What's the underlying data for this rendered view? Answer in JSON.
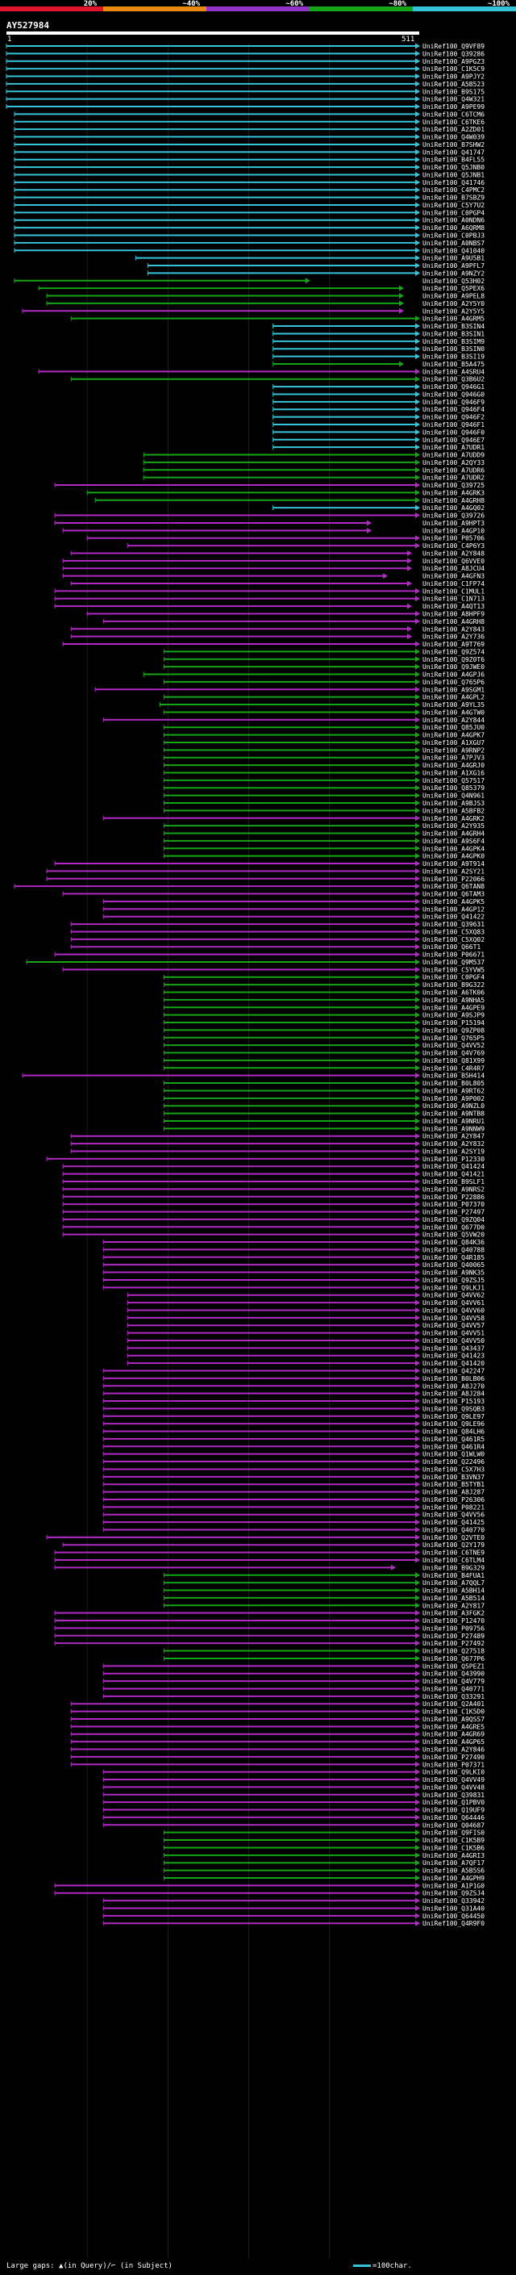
{
  "header": {
    "scale_labels": [
      "20%",
      "~40%",
      "~60%",
      "~80%",
      "~100%"
    ],
    "scale_colors": [
      "#e0142a",
      "#e88a12",
      "#9334c8",
      "#16a516",
      "#35c3d8"
    ],
    "title": "AY527984",
    "range_start": "1",
    "range_end": "511"
  },
  "query_length": 511,
  "colors": {
    "cyan": "#35c3d8",
    "green": "#16a516",
    "magenta": "#b12ac4",
    "background": "#000000",
    "label": "#ffffff"
  },
  "hits": [
    [
      "UniRef100_Q9VF89",
      0,
      511,
      "c"
    ],
    [
      "UniRef100_Q39286",
      0,
      511,
      "c"
    ],
    [
      "UniRef100_A9PGZ3",
      0,
      511,
      "c"
    ],
    [
      "UniRef100_C1K5C9",
      0,
      511,
      "c"
    ],
    [
      "UniRef100_A9PJY2",
      0,
      511,
      "c"
    ],
    [
      "UniRef100_A5B523",
      0,
      511,
      "c"
    ],
    [
      "UniRef100_B9S175",
      0,
      511,
      "c"
    ],
    [
      "UniRef100_Q4W321",
      0,
      511,
      "c"
    ],
    [
      "UniRef100_A9PE99",
      0,
      511,
      "c"
    ],
    [
      "UniRef100_C6TCM6",
      10,
      511,
      "c"
    ],
    [
      "UniRef100_C6TKE6",
      10,
      511,
      "c"
    ],
    [
      "UniRef100_A2ZD01",
      10,
      511,
      "c"
    ],
    [
      "UniRef100_Q4W039",
      10,
      511,
      "c"
    ],
    [
      "UniRef100_B7SHW2",
      10,
      511,
      "c"
    ],
    [
      "UniRef100_Q41747",
      10,
      511,
      "c"
    ],
    [
      "UniRef100_B4FL55",
      10,
      511,
      "c"
    ],
    [
      "UniRef100_Q5JNB0",
      10,
      511,
      "c"
    ],
    [
      "UniRef100_Q5JNB1",
      10,
      511,
      "c"
    ],
    [
      "UniRef100_Q41746",
      10,
      511,
      "c"
    ],
    [
      "UniRef100_C4PMC2",
      10,
      511,
      "c"
    ],
    [
      "UniRef100_B7SBZ9",
      10,
      511,
      "c"
    ],
    [
      "UniRef100_C5Y7U2",
      10,
      511,
      "c"
    ],
    [
      "UniRef100_C0PGP4",
      10,
      511,
      "c"
    ],
    [
      "UniRef100_A0NDN6",
      10,
      511,
      "c"
    ],
    [
      "UniRef100_A6QRM8",
      10,
      511,
      "c"
    ],
    [
      "UniRef100_C0PBJ3",
      10,
      511,
      "c"
    ],
    [
      "UniRef100_A0NBS7",
      10,
      511,
      "c"
    ],
    [
      "UniRef100_Q41040",
      10,
      511,
      "c"
    ],
    [
      "UniRef100_A9U5B1",
      160,
      511,
      "c"
    ],
    [
      "UniRef100_A9PFL7",
      175,
      511,
      "c"
    ],
    [
      "UniRef100_A9NZY2",
      175,
      511,
      "c"
    ],
    [
      "UniRef100_Q53H02",
      10,
      375,
      "g"
    ],
    [
      "UniRef100_Q5PEX6",
      40,
      491,
      "g"
    ],
    [
      "UniRef100_A9PEL8",
      50,
      491,
      "g"
    ],
    [
      "UniRef100_A2Y5Y0",
      50,
      491,
      "g"
    ],
    [
      "UniRef100_A2Y5Y5",
      20,
      491,
      "m"
    ],
    [
      "UniRef100_A4GRM5",
      80,
      511,
      "g"
    ],
    [
      "UniRef100_B3SIN4",
      330,
      511,
      "c"
    ],
    [
      "UniRef100_B3SIN1",
      330,
      511,
      "c"
    ],
    [
      "UniRef100_B3SIM9",
      330,
      511,
      "c"
    ],
    [
      "UniRef100_B3SIN0",
      330,
      511,
      "c"
    ],
    [
      "UniRef100_B3SI19",
      330,
      511,
      "c"
    ],
    [
      "UniRef100_B5A475",
      330,
      491,
      "g"
    ],
    [
      "UniRef100_A4SRU4",
      40,
      511,
      "m"
    ],
    [
      "UniRef100_Q3B6U2",
      80,
      511,
      "g"
    ],
    [
      "UniRef100_Q946G1",
      330,
      511,
      "c"
    ],
    [
      "UniRef100_Q946G0",
      330,
      511,
      "c"
    ],
    [
      "UniRef100_Q946F9",
      330,
      511,
      "c"
    ],
    [
      "UniRef100_Q946F4",
      330,
      511,
      "c"
    ],
    [
      "UniRef100_Q946F2",
      330,
      511,
      "c"
    ],
    [
      "UniRef100_Q946F1",
      330,
      511,
      "c"
    ],
    [
      "UniRef100_Q946F0",
      330,
      511,
      "c"
    ],
    [
      "UniRef100_Q946E7",
      330,
      511,
      "c"
    ],
    [
      "UniRef100_A7UDR1",
      330,
      511,
      "c"
    ],
    [
      "UniRef100_A7UDD9",
      170,
      511,
      "g"
    ],
    [
      "UniRef100_A2QY33",
      170,
      511,
      "g"
    ],
    [
      "UniRef100_A7UDR6",
      170,
      511,
      "g"
    ],
    [
      "UniRef100_A7UDR2",
      170,
      511,
      "g"
    ],
    [
      "UniRef100_Q39725",
      60,
      511,
      "m"
    ],
    [
      "UniRef100_A4GRK3",
      100,
      511,
      "g"
    ],
    [
      "UniRef100_A4GRH8",
      110,
      511,
      "g"
    ],
    [
      "UniRef100_A4GQ02",
      330,
      511,
      "c"
    ],
    [
      "UniRef100_Q39726",
      60,
      511,
      "m"
    ],
    [
      "UniRef100_A9HPT3",
      60,
      451,
      "m"
    ],
    [
      "UniRef100_A4GP10",
      70,
      451,
      "m"
    ],
    [
      "UniRef100_P05706",
      100,
      511,
      "m"
    ],
    [
      "UniRef100_C4P6Y3",
      150,
      511,
      "m"
    ],
    [
      "UniRef100_A2Y848",
      80,
      501,
      "m"
    ],
    [
      "UniRef100_Q6VVE0",
      70,
      501,
      "m"
    ],
    [
      "UniRef100_A8JCU4",
      70,
      501,
      "m"
    ],
    [
      "UniRef100_A4GFN3",
      70,
      471,
      "m"
    ],
    [
      "UniRef100_C1FP74",
      80,
      501,
      "m"
    ],
    [
      "UniRef100_C1MUL1",
      60,
      511,
      "m"
    ],
    [
      "UniRef100_C1N713",
      60,
      511,
      "m"
    ],
    [
      "UniRef100_A4QT13",
      60,
      501,
      "m"
    ],
    [
      "UniRef100_A8HPF9",
      100,
      511,
      "m"
    ],
    [
      "UniRef100_A4GRH8",
      120,
      511,
      "m"
    ],
    [
      "UniRef100_A2Y843",
      80,
      501,
      "m"
    ],
    [
      "UniRef100_A2Y736",
      80,
      501,
      "m"
    ],
    [
      "UniRef100_A9T769",
      70,
      511,
      "m"
    ],
    [
      "UniRef100_Q9Z574",
      195,
      511,
      "g"
    ],
    [
      "UniRef100_Q9Z0T6",
      195,
      511,
      "g"
    ],
    [
      "UniRef100_Q9JWE0",
      195,
      511,
      "g"
    ],
    [
      "UniRef100_A4GPJ6",
      170,
      511,
      "g"
    ],
    [
      "UniRef100_Q765P6",
      195,
      511,
      "g"
    ],
    [
      "UniRef100_A9SGM1",
      110,
      511,
      "m"
    ],
    [
      "UniRef100_A4GPL2",
      195,
      511,
      "g"
    ],
    [
      "UniRef100_A9YL35",
      190,
      511,
      "g"
    ],
    [
      "UniRef100_A4GTW0",
      195,
      511,
      "g"
    ],
    [
      "UniRef100_A2Y844",
      120,
      511,
      "m"
    ],
    [
      "UniRef100_Q85JU0",
      195,
      511,
      "g"
    ],
    [
      "UniRef100_A4GPK7",
      195,
      511,
      "g"
    ],
    [
      "UniRef100_A1XGU7",
      195,
      511,
      "g"
    ],
    [
      "UniRef100_A9RNP2",
      195,
      511,
      "g"
    ],
    [
      "UniRef100_A7PJV3",
      195,
      511,
      "g"
    ],
    [
      "UniRef100_A4GRJ0",
      195,
      511,
      "g"
    ],
    [
      "UniRef100_A1XG16",
      195,
      511,
      "g"
    ],
    [
      "UniRef100_Q57517",
      195,
      511,
      "g"
    ],
    [
      "UniRef100_Q85379",
      195,
      511,
      "g"
    ],
    [
      "UniRef100_Q4N961",
      195,
      511,
      "g"
    ],
    [
      "UniRef100_A9BJS3",
      195,
      511,
      "g"
    ],
    [
      "UniRef100_A5BFB2",
      195,
      511,
      "g"
    ],
    [
      "UniRef100_A4GRK2",
      120,
      511,
      "m"
    ],
    [
      "UniRef100_A2Y935",
      195,
      511,
      "g"
    ],
    [
      "UniRef100_A4GRH4",
      195,
      511,
      "g"
    ],
    [
      "UniRef100_A9S6F4",
      195,
      511,
      "g"
    ],
    [
      "UniRef100_A4GPK4",
      195,
      511,
      "g"
    ],
    [
      "UniRef100_A4GPK0",
      195,
      511,
      "g"
    ],
    [
      "UniRef100_A9T914",
      60,
      511,
      "m"
    ],
    [
      "UniRef100_A2SY21",
      50,
      511,
      "m"
    ],
    [
      "UniRef100_P22066",
      50,
      511,
      "m"
    ],
    [
      "UniRef100_Q6TAN8",
      10,
      511,
      "m"
    ],
    [
      "UniRef100_Q6TAM3",
      70,
      511,
      "m"
    ],
    [
      "UniRef100_A4GPK5",
      120,
      511,
      "m"
    ],
    [
      "UniRef100_A4GP12",
      120,
      511,
      "m"
    ],
    [
      "UniRef100_Q41422",
      120,
      511,
      "m"
    ],
    [
      "UniRef100_Q39631",
      80,
      511,
      "m"
    ],
    [
      "UniRef100_C5XQ83",
      80,
      511,
      "m"
    ],
    [
      "UniRef100_C5XQ02",
      80,
      511,
      "m"
    ],
    [
      "UniRef100_Q66T1",
      80,
      511,
      "m"
    ],
    [
      "UniRef100_P06671",
      60,
      511,
      "m"
    ],
    [
      "UniRef100_Q9M537",
      25,
      511,
      "g"
    ],
    [
      "UniRef100_C5YVW5",
      70,
      511,
      "m"
    ],
    [
      "UniRef100_C0PGF4",
      195,
      511,
      "g"
    ],
    [
      "UniRef100_B9G322",
      195,
      511,
      "g"
    ],
    [
      "UniRef100_A6TK06",
      195,
      511,
      "g"
    ],
    [
      "UniRef100_A9NHA5",
      195,
      511,
      "g"
    ],
    [
      "UniRef100_A4GPE9",
      195,
      511,
      "g"
    ],
    [
      "UniRef100_A9SJP9",
      195,
      511,
      "g"
    ],
    [
      "UniRef100_P15194",
      195,
      511,
      "g"
    ],
    [
      "UniRef100_Q9ZP08",
      195,
      511,
      "g"
    ],
    [
      "UniRef100_Q765P5",
      195,
      511,
      "g"
    ],
    [
      "UniRef100_Q4VV52",
      195,
      511,
      "g"
    ],
    [
      "UniRef100_Q4V769",
      195,
      511,
      "g"
    ],
    [
      "UniRef100_Q81X99",
      195,
      511,
      "g"
    ],
    [
      "UniRef100_C4R4R7",
      195,
      511,
      "g"
    ],
    [
      "UniRef100_B5H414",
      20,
      511,
      "m"
    ],
    [
      "UniRef100_B0L805",
      195,
      511,
      "g"
    ],
    [
      "UniRef100_A9RT62",
      195,
      511,
      "g"
    ],
    [
      "UniRef100_A9P002",
      195,
      511,
      "g"
    ],
    [
      "UniRef100_A9NZL0",
      195,
      511,
      "g"
    ],
    [
      "UniRef100_A9NTB8",
      195,
      511,
      "g"
    ],
    [
      "UniRef100_A9NRU1",
      195,
      511,
      "g"
    ],
    [
      "UniRef100_A9NNW9",
      195,
      511,
      "g"
    ],
    [
      "UniRef100_A2Y847",
      80,
      511,
      "m"
    ],
    [
      "UniRef100_A2Y832",
      80,
      511,
      "m"
    ],
    [
      "UniRef100_A2SY19",
      80,
      511,
      "m"
    ],
    [
      "UniRef100_P12330",
      50,
      511,
      "m"
    ],
    [
      "UniRef100_Q41424",
      70,
      511,
      "m"
    ],
    [
      "UniRef100_Q41421",
      70,
      511,
      "m"
    ],
    [
      "UniRef100_B9SLF1",
      70,
      511,
      "m"
    ],
    [
      "UniRef100_A9NRS2",
      70,
      511,
      "m"
    ],
    [
      "UniRef100_P22886",
      70,
      511,
      "m"
    ],
    [
      "UniRef100_P07370",
      70,
      511,
      "m"
    ],
    [
      "UniRef100_P27497",
      70,
      511,
      "m"
    ],
    [
      "UniRef100_Q9ZQ04",
      70,
      511,
      "m"
    ],
    [
      "UniRef100_Q677D0",
      70,
      511,
      "m"
    ],
    [
      "UniRef100_Q5VW20",
      70,
      511,
      "m"
    ],
    [
      "UniRef100_Q84K36",
      120,
      511,
      "m"
    ],
    [
      "UniRef100_Q40788",
      120,
      511,
      "m"
    ],
    [
      "UniRef100_Q4R185",
      120,
      511,
      "m"
    ],
    [
      "UniRef100_Q40065",
      120,
      511,
      "m"
    ],
    [
      "UniRef100_A9NK35",
      120,
      511,
      "m"
    ],
    [
      "UniRef100_Q9ZSJ5",
      120,
      511,
      "m"
    ],
    [
      "UniRef100_Q9LKJ1",
      120,
      511,
      "m"
    ],
    [
      "UniRef100_Q4VV62",
      150,
      511,
      "m"
    ],
    [
      "UniRef100_Q4VV61",
      150,
      511,
      "m"
    ],
    [
      "UniRef100_Q4VV60",
      150,
      511,
      "m"
    ],
    [
      "UniRef100_Q4VV58",
      150,
      511,
      "m"
    ],
    [
      "UniRef100_Q4VV57",
      150,
      511,
      "m"
    ],
    [
      "UniRef100_Q4VV51",
      150,
      511,
      "m"
    ],
    [
      "UniRef100_Q4VV50",
      150,
      511,
      "m"
    ],
    [
      "UniRef100_Q43437",
      150,
      511,
      "m"
    ],
    [
      "UniRef100_Q41423",
      150,
      511,
      "m"
    ],
    [
      "UniRef100_Q41420",
      150,
      511,
      "m"
    ],
    [
      "UniRef100_Q42247",
      120,
      511,
      "m"
    ],
    [
      "UniRef100_B0LB06",
      120,
      511,
      "m"
    ],
    [
      "UniRef100_A8J270",
      120,
      511,
      "m"
    ],
    [
      "UniRef100_A8J284",
      120,
      511,
      "m"
    ],
    [
      "UniRef100_P15193",
      120,
      511,
      "m"
    ],
    [
      "UniRef100_Q9SQB3",
      120,
      511,
      "m"
    ],
    [
      "UniRef100_Q9LE97",
      120,
      511,
      "m"
    ],
    [
      "UniRef100_Q9LE96",
      120,
      511,
      "m"
    ],
    [
      "UniRef100_Q84LH6",
      120,
      511,
      "m"
    ],
    [
      "UniRef100_Q461R5",
      120,
      511,
      "m"
    ],
    [
      "UniRef100_Q461R4",
      120,
      511,
      "m"
    ],
    [
      "UniRef100_Q1WLW0",
      120,
      511,
      "m"
    ],
    [
      "UniRef100_Q22496",
      120,
      511,
      "m"
    ],
    [
      "UniRef100_C5X7H3",
      120,
      511,
      "m"
    ],
    [
      "UniRef100_B3VN37",
      120,
      511,
      "m"
    ],
    [
      "UniRef100_B5TYB1",
      120,
      511,
      "m"
    ],
    [
      "UniRef100_A8J287",
      120,
      511,
      "m"
    ],
    [
      "UniRef100_P26306",
      120,
      511,
      "m"
    ],
    [
      "UniRef100_P08221",
      120,
      511,
      "m"
    ],
    [
      "UniRef100_Q4VV56",
      120,
      511,
      "m"
    ],
    [
      "UniRef100_Q41425",
      120,
      511,
      "m"
    ],
    [
      "UniRef100_Q40770",
      120,
      511,
      "m"
    ],
    [
      "UniRef100_Q2VTE0",
      50,
      511,
      "m"
    ],
    [
      "UniRef100_Q2Y179",
      70,
      511,
      "m"
    ],
    [
      "UniRef100_C6TNE9",
      60,
      511,
      "m"
    ],
    [
      "UniRef100_C6TLM4",
      60,
      511,
      "m"
    ],
    [
      "UniRef100_B9G329",
      60,
      481,
      "m"
    ],
    [
      "UniRef100_B4FUA1",
      195,
      511,
      "g"
    ],
    [
      "UniRef100_A7QQL7",
      195,
      511,
      "g"
    ],
    [
      "UniRef100_A5BH14",
      195,
      511,
      "g"
    ],
    [
      "UniRef100_A5B514",
      195,
      511,
      "g"
    ],
    [
      "UniRef100_A2Y817",
      195,
      511,
      "g"
    ],
    [
      "UniRef100_A3FGK2",
      60,
      511,
      "m"
    ],
    [
      "UniRef100_P12470",
      60,
      511,
      "m"
    ],
    [
      "UniRef100_P09756",
      60,
      511,
      "m"
    ],
    [
      "UniRef100_P27489",
      60,
      511,
      "m"
    ],
    [
      "UniRef100_P27492",
      60,
      511,
      "m"
    ],
    [
      "UniRef100_Q27518",
      195,
      511,
      "g"
    ],
    [
      "UniRef100_Q677P6",
      195,
      511,
      "g"
    ],
    [
      "UniRef100_Q5PEZ1",
      120,
      511,
      "m"
    ],
    [
      "UniRef100_Q43990",
      120,
      511,
      "m"
    ],
    [
      "UniRef100_Q4V779",
      120,
      511,
      "m"
    ],
    [
      "UniRef100_Q40771",
      120,
      511,
      "m"
    ],
    [
      "UniRef100_Q33291",
      120,
      511,
      "m"
    ],
    [
      "UniRef100_Q2A401",
      80,
      511,
      "m"
    ],
    [
      "UniRef100_C1K5D0",
      80,
      511,
      "m"
    ],
    [
      "UniRef100_A9QSS7",
      80,
      511,
      "m"
    ],
    [
      "UniRef100_A4GRE5",
      80,
      511,
      "m"
    ],
    [
      "UniRef100_A4GR69",
      80,
      511,
      "m"
    ],
    [
      "UniRef100_A4GP65",
      80,
      511,
      "m"
    ],
    [
      "UniRef100_A2Y846",
      80,
      511,
      "m"
    ],
    [
      "UniRef100_P27490",
      80,
      511,
      "m"
    ],
    [
      "UniRef100_P07371",
      80,
      511,
      "m"
    ],
    [
      "UniRef100_Q9LKI0",
      120,
      511,
      "m"
    ],
    [
      "UniRef100_Q4VV49",
      120,
      511,
      "m"
    ],
    [
      "UniRef100_Q4VV48",
      120,
      511,
      "m"
    ],
    [
      "UniRef100_Q39831",
      120,
      511,
      "m"
    ],
    [
      "UniRef100_Q1PBV0",
      120,
      511,
      "m"
    ],
    [
      "UniRef100_Q19UF9",
      120,
      511,
      "m"
    ],
    [
      "UniRef100_Q64446",
      120,
      511,
      "m"
    ],
    [
      "UniRef100_Q04687",
      120,
      511,
      "m"
    ],
    [
      "UniRef100_Q9FIS0",
      195,
      511,
      "g"
    ],
    [
      "UniRef100_C1K5B9",
      195,
      511,
      "g"
    ],
    [
      "UniRef100_C1K5B6",
      195,
      511,
      "g"
    ],
    [
      "UniRef100_A4GRI3",
      195,
      511,
      "g"
    ],
    [
      "UniRef100_A7QF17",
      195,
      511,
      "g"
    ],
    [
      "UniRef100_A5B5S6",
      195,
      511,
      "g"
    ],
    [
      "UniRef100_A4GPH9",
      195,
      511,
      "g"
    ],
    [
      "UniRef100_A1P1G0",
      60,
      511,
      "m"
    ],
    [
      "UniRef100_Q9ZSJ4",
      60,
      511,
      "m"
    ],
    [
      "UniRef100_Q33942",
      120,
      511,
      "m"
    ],
    [
      "UniRef100_Q31A40",
      120,
      511,
      "m"
    ],
    [
      "UniRef100_Q64450",
      120,
      511,
      "m"
    ],
    [
      "UniRef100_Q4R9F0",
      120,
      511,
      "m"
    ]
  ],
  "footer": {
    "legend": "Large gaps: ▲(in Query)/⌐ (in Subject)",
    "scale_label": "=100char."
  }
}
